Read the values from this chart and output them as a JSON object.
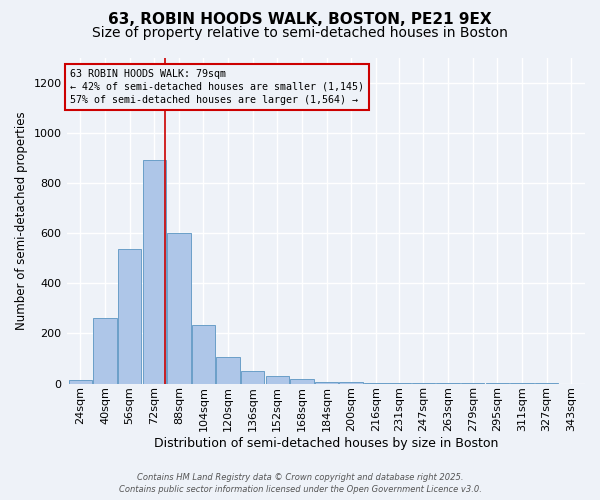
{
  "title1": "63, ROBIN HOODS WALK, BOSTON, PE21 9EX",
  "title2": "Size of property relative to semi-detached houses in Boston",
  "xlabel": "Distribution of semi-detached houses by size in Boston",
  "ylabel": "Number of semi-detached properties",
  "categories": [
    "24sqm",
    "40sqm",
    "56sqm",
    "72sqm",
    "88sqm",
    "104sqm",
    "120sqm",
    "136sqm",
    "152sqm",
    "168sqm",
    "184sqm",
    "200sqm",
    "216sqm",
    "231sqm",
    "247sqm",
    "263sqm",
    "279sqm",
    "295sqm",
    "311sqm",
    "327sqm",
    "343sqm"
  ],
  "bar_values": [
    15,
    260,
    535,
    890,
    600,
    235,
    105,
    50,
    30,
    20,
    5,
    5,
    2,
    2,
    2,
    2,
    2,
    2,
    2,
    2,
    0
  ],
  "bin_starts": [
    16,
    32,
    48,
    64,
    80,
    96,
    112,
    128,
    144,
    160,
    176,
    192,
    208,
    223,
    239,
    255,
    271,
    287,
    303,
    319,
    335
  ],
  "bin_width": 16,
  "bar_color": "#aec6e8",
  "bar_edge_color": "#6a9fc8",
  "property_size": 79,
  "vline_color": "#cc0000",
  "ann_line1": "63 ROBIN HOODS WALK: 79sqm",
  "ann_line2": "← 42% of semi-detached houses are smaller (1,145)",
  "ann_line3": "57% of semi-detached houses are larger (1,564) →",
  "annotation_box_color": "#cc0000",
  "ylim": [
    0,
    1300
  ],
  "yticks": [
    0,
    200,
    400,
    600,
    800,
    1000,
    1200
  ],
  "footer1": "Contains HM Land Registry data © Crown copyright and database right 2025.",
  "footer2": "Contains public sector information licensed under the Open Government Licence v3.0.",
  "bg_color": "#eef2f8",
  "grid_color": "#ffffff",
  "title1_fontsize": 11,
  "title2_fontsize": 10,
  "axis_fontsize": 8,
  "xlabel_fontsize": 9,
  "ylabel_fontsize": 8.5
}
